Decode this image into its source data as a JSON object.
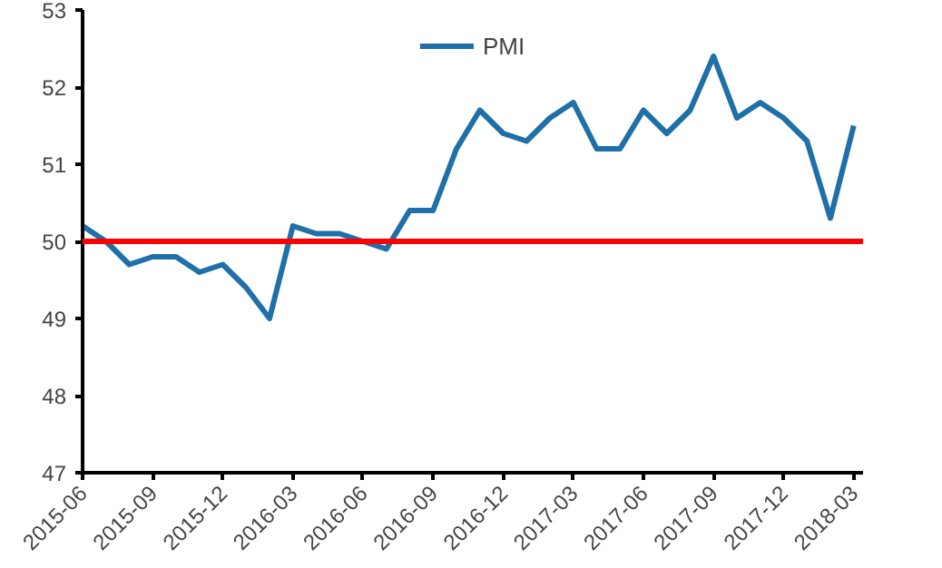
{
  "chart_data": {
    "type": "line",
    "categories": [
      "2015-06",
      null,
      null,
      "2015-09",
      null,
      null,
      "2015-12",
      null,
      null,
      "2016-03",
      null,
      null,
      "2016-06",
      null,
      null,
      "2016-09",
      null,
      null,
      "2016-12",
      null,
      null,
      "2017-03",
      null,
      null,
      "2017-06",
      null,
      null,
      "2017-09",
      null,
      null,
      "2017-12",
      null,
      null,
      "2018-03"
    ],
    "series": [
      {
        "name": "PMI",
        "color": "#1f6fa8",
        "values": [
          50.2,
          50.0,
          49.7,
          49.8,
          49.8,
          49.6,
          49.7,
          49.4,
          49.0,
          50.2,
          50.1,
          50.1,
          50.0,
          49.9,
          50.4,
          50.4,
          51.2,
          51.7,
          51.4,
          51.3,
          51.6,
          51.8,
          51.2,
          51.2,
          51.7,
          51.4,
          51.7,
          52.4,
          51.6,
          51.8,
          51.6,
          51.3,
          50.3,
          51.5
        ]
      }
    ],
    "ylim": [
      47,
      53
    ],
    "yticks": [
      47,
      48,
      49,
      50,
      51,
      52,
      53
    ],
    "ref_lines": [
      {
        "axis": "y",
        "value": 50,
        "color": "#ff0000"
      }
    ],
    "legend": "top",
    "grid": false,
    "marker": "none",
    "line_style": "solid"
  }
}
